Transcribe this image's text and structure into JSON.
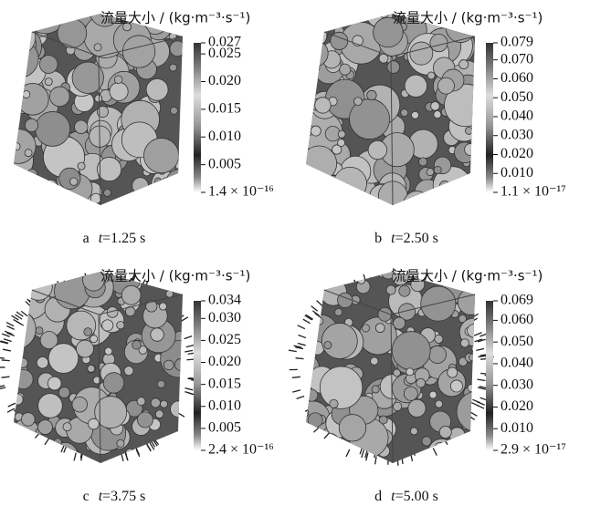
{
  "panels": [
    {
      "colorbar_title": "流量大小 / (kg·m⁻³·s⁻¹)",
      "colorbar": {
        "lim": [
          1.4e-16,
          0.027
        ],
        "ticks": [
          0.027,
          0.025,
          {
            "value": 0.02,
            "label": "0.020"
          },
          0.015,
          {
            "value": 0.01,
            "label": "0.010"
          },
          0.005,
          {
            "value": 1.4e-16,
            "label": "1.4 × 10⁻¹⁶"
          }
        ]
      },
      "caption": {
        "letter": "a",
        "variable": "t",
        "text": "=1.25 s"
      }
    },
    {
      "colorbar_title": "流量大小 / (kg·m⁻³·s⁻¹)",
      "colorbar": {
        "lim": [
          1.1e-17,
          0.079
        ],
        "ticks": [
          0.079,
          {
            "value": 0.07,
            "label": "0.070"
          },
          {
            "value": 0.06,
            "label": "0.060"
          },
          {
            "value": 0.05,
            "label": "0.050"
          },
          {
            "value": 0.04,
            "label": "0.040"
          },
          {
            "value": 0.03,
            "label": "0.030"
          },
          {
            "value": 0.02,
            "label": "0.020"
          },
          {
            "value": 0.01,
            "label": "0.010"
          },
          {
            "value": 1.1e-17,
            "label": "1.1 × 10⁻¹⁷"
          }
        ]
      },
      "caption": {
        "letter": "b",
        "variable": "t",
        "text": "=2.50 s"
      }
    },
    {
      "colorbar_title": "流量大小 / (kg·m⁻³·s⁻¹)",
      "colorbar": {
        "lim": [
          2.4e-16,
          0.034
        ],
        "ticks": [
          0.034,
          {
            "value": 0.03,
            "label": "0.030"
          },
          0.025,
          {
            "value": 0.02,
            "label": "0.020"
          },
          0.015,
          {
            "value": 0.01,
            "label": "0.010"
          },
          0.005,
          {
            "value": 2.4e-16,
            "label": "2.4 × 10⁻¹⁶"
          }
        ]
      },
      "caption": {
        "letter": "c",
        "variable": "t",
        "text": "=3.75 s"
      }
    },
    {
      "colorbar_title": "流量大小 / (kg·m⁻³·s⁻¹)",
      "colorbar": {
        "lim": [
          2.9e-17,
          0.069
        ],
        "ticks": [
          0.069,
          {
            "value": 0.06,
            "label": "0.060"
          },
          {
            "value": 0.05,
            "label": "0.050"
          },
          {
            "value": 0.04,
            "label": "0.040"
          },
          {
            "value": 0.03,
            "label": "0.030"
          },
          {
            "value": 0.02,
            "label": "0.020"
          },
          {
            "value": 0.01,
            "label": "0.010"
          },
          {
            "value": 2.9e-17,
            "label": "2.9 × 10⁻¹⁷"
          }
        ]
      },
      "caption": {
        "letter": "d",
        "variable": "t",
        "text": "=5.00 s"
      }
    }
  ]
}
